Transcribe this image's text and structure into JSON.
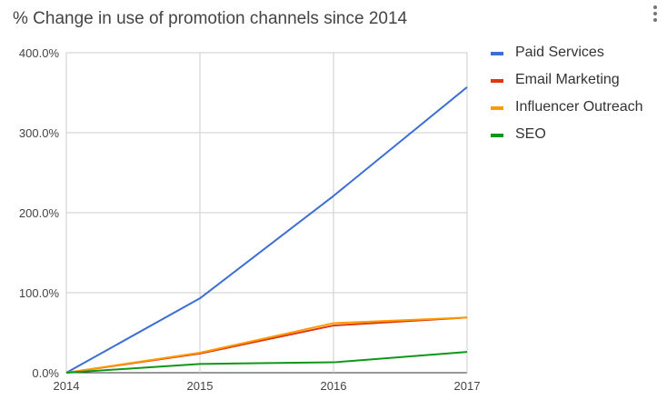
{
  "chart_data": {
    "type": "line",
    "title": "% Change in use of promotion channels since 2014",
    "x": [
      "2014",
      "2015",
      "2016",
      "2017"
    ],
    "y_ticks": [
      "0.0%",
      "100.0%",
      "200.0%",
      "300.0%",
      "400.0%"
    ],
    "ylim": [
      0,
      400
    ],
    "grid": true,
    "legend_position": "right",
    "series": [
      {
        "name": "Paid Services",
        "color": "#3c6fd1",
        "values": [
          0,
          93,
          221,
          357
        ]
      },
      {
        "name": "Email Marketing",
        "color": "#dc3912",
        "values": [
          0,
          24,
          59,
          69
        ]
      },
      {
        "name": "Influencer Outreach",
        "color": "#ff9900",
        "values": [
          0,
          25,
          62,
          69
        ]
      },
      {
        "name": "SEO",
        "color": "#109618",
        "values": [
          0,
          11,
          13,
          26
        ]
      }
    ]
  },
  "menu": {
    "icon": "more-vert-icon"
  }
}
